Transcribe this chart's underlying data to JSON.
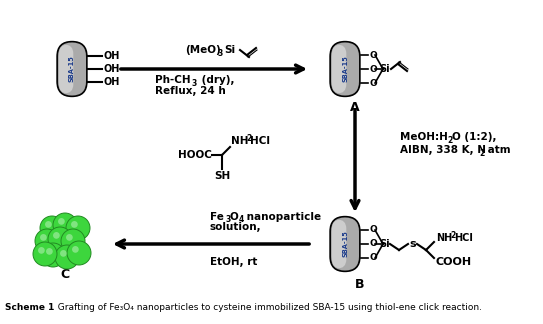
{
  "figure_width": 5.43,
  "figure_height": 3.24,
  "dpi": 100,
  "bg_color": "#ffffff",
  "sba15_color_outer": "#888888",
  "sba15_color_inner": "#cccccc",
  "sba15_text_color": "#1a3a8a",
  "green_sphere_color": "#3dd63d",
  "green_sphere_dark": "#228b22",
  "arrow_color": "#111111",
  "label_A": "A",
  "label_B": "B",
  "label_C": "C"
}
